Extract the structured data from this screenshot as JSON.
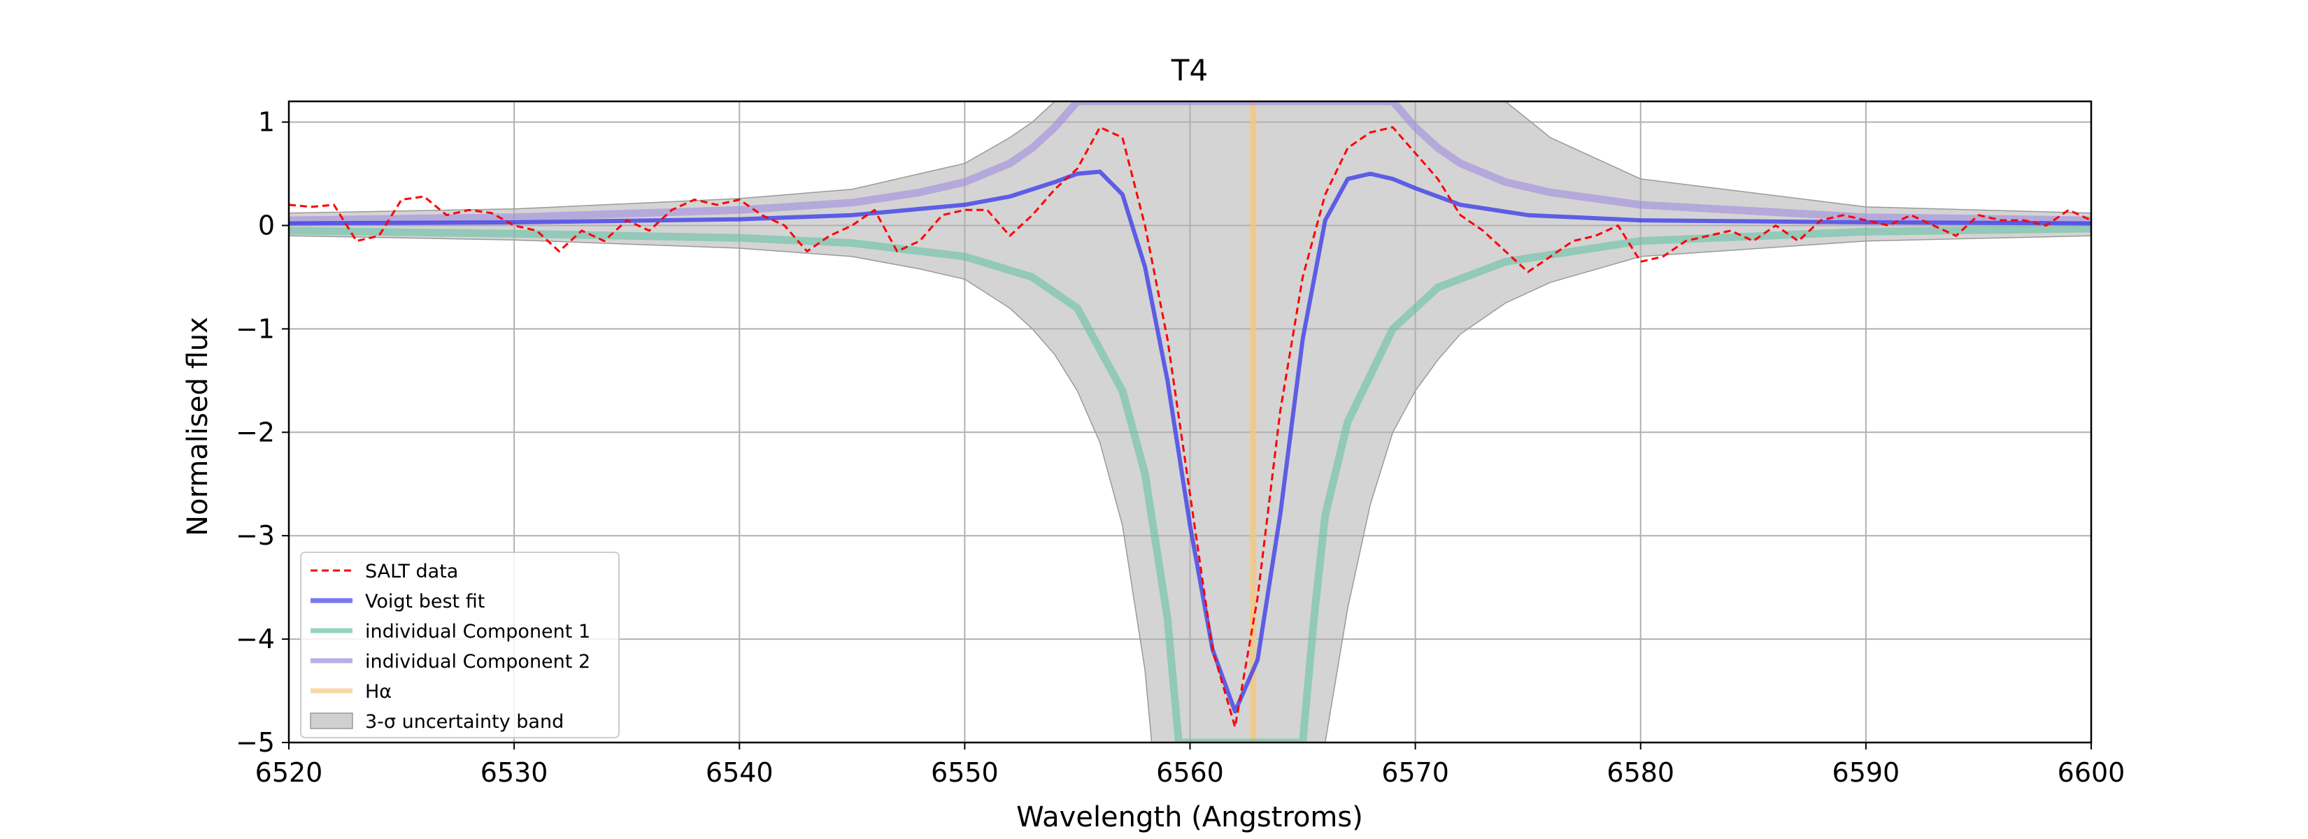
{
  "chart_data": {
    "type": "line",
    "title": "T4",
    "xlabel": "Wavelength (Angstroms)",
    "ylabel": "Normalised flux",
    "xlim": [
      6520,
      6600
    ],
    "ylim": [
      -5,
      1.2
    ],
    "xticks": [
      "6520",
      "6530",
      "6540",
      "6550",
      "6560",
      "6570",
      "6580",
      "6590",
      "6600"
    ],
    "yticks": [
      "1",
      "0",
      "−1",
      "−2",
      "−3",
      "−4",
      "−5"
    ],
    "grid": true,
    "legend_position": "lower-left",
    "halpha_wavelength": 6562.8,
    "series": [
      {
        "name": "SALT data",
        "style": "dashed",
        "color": "#ff0000",
        "x": [
          6520,
          6521,
          6522,
          6523,
          6524,
          6525,
          6526,
          6527,
          6528,
          6529,
          6530,
          6531,
          6532,
          6533,
          6534,
          6535,
          6536,
          6537,
          6538,
          6539,
          6540,
          6541,
          6542,
          6543,
          6544,
          6545,
          6546,
          6547,
          6548,
          6549,
          6550,
          6551,
          6552,
          6553,
          6554,
          6555,
          6556,
          6557,
          6558,
          6559,
          6560,
          6561,
          6562,
          6563,
          6564,
          6565,
          6566,
          6567,
          6568,
          6569,
          6570,
          6571,
          6572,
          6573,
          6574,
          6575,
          6576,
          6577,
          6578,
          6579,
          6580,
          6581,
          6582,
          6583,
          6584,
          6585,
          6586,
          6587,
          6588,
          6589,
          6590,
          6591,
          6592,
          6593,
          6594,
          6595,
          6596,
          6597,
          6598,
          6599,
          6600
        ],
        "y": [
          0.2,
          0.18,
          0.2,
          -0.15,
          -0.1,
          0.25,
          0.28,
          0.1,
          0.15,
          0.12,
          0.0,
          -0.05,
          -0.25,
          -0.05,
          -0.15,
          0.05,
          -0.05,
          0.15,
          0.25,
          0.2,
          0.25,
          0.1,
          0.0,
          -0.25,
          -0.1,
          0.0,
          0.15,
          -0.25,
          -0.15,
          0.1,
          0.15,
          0.15,
          -0.1,
          0.1,
          0.35,
          0.55,
          0.95,
          0.85,
          0.0,
          -1.1,
          -2.6,
          -4.1,
          -4.85,
          -3.6,
          -1.8,
          -0.5,
          0.3,
          0.75,
          0.9,
          0.95,
          0.7,
          0.45,
          0.1,
          -0.05,
          -0.25,
          -0.45,
          -0.3,
          -0.15,
          -0.1,
          0.0,
          -0.35,
          -0.3,
          -0.15,
          -0.1,
          -0.05,
          -0.15,
          0.0,
          -0.15,
          0.05,
          0.1,
          0.05,
          0.0,
          0.1,
          0.0,
          -0.1,
          0.1,
          0.05,
          0.05,
          0.0,
          0.15,
          0.05
        ]
      },
      {
        "name": "Voigt best fit",
        "style": "solid",
        "color": "#3f3fe8",
        "x": [
          6520,
          6530,
          6540,
          6545,
          6550,
          6552,
          6554,
          6555,
          6556,
          6557,
          6558,
          6559,
          6560,
          6561,
          6562,
          6563,
          6564,
          6565,
          6566,
          6567,
          6568,
          6569,
          6570,
          6572,
          6575,
          6580,
          6590,
          6600
        ],
        "y": [
          0.02,
          0.03,
          0.06,
          0.1,
          0.2,
          0.28,
          0.42,
          0.5,
          0.52,
          0.3,
          -0.4,
          -1.5,
          -2.9,
          -4.1,
          -4.7,
          -4.2,
          -2.8,
          -1.1,
          0.05,
          0.45,
          0.5,
          0.45,
          0.36,
          0.2,
          0.1,
          0.05,
          0.03,
          0.02
        ]
      },
      {
        "name": "individual Component 1",
        "style": "solid",
        "color": "#66c2a5",
        "x": [
          6520,
          6530,
          6540,
          6545,
          6550,
          6553,
          6555,
          6557,
          6558,
          6559,
          6559.5,
          6565,
          6565.5,
          6566,
          6567,
          6569,
          6571,
          6574,
          6580,
          6590,
          6600
        ],
        "y": [
          -0.05,
          -0.08,
          -0.12,
          -0.17,
          -0.3,
          -0.5,
          -0.8,
          -1.6,
          -2.4,
          -3.8,
          -5.0,
          -5.0,
          -3.8,
          -2.8,
          -1.9,
          -1.0,
          -0.6,
          -0.35,
          -0.15,
          -0.06,
          -0.03
        ]
      },
      {
        "name": "individual Component 2",
        "style": "solid",
        "color": "#9e8cde",
        "x": [
          6520,
          6530,
          6540,
          6545,
          6548,
          6550,
          6552,
          6553,
          6554,
          6555,
          6569,
          6570,
          6571,
          6572,
          6574,
          6576,
          6580,
          6590,
          6600
        ],
        "y": [
          0.05,
          0.08,
          0.15,
          0.22,
          0.32,
          0.42,
          0.6,
          0.75,
          0.95,
          1.2,
          1.2,
          0.95,
          0.75,
          0.6,
          0.42,
          0.32,
          0.2,
          0.08,
          0.05
        ]
      }
    ],
    "vertical_lines": [
      {
        "name": "Hα",
        "x": 6562.8,
        "color": "#f5c77e"
      }
    ],
    "bands": [
      {
        "name": "3-σ uncertainty band",
        "color": "#b0b0b0",
        "x": [
          6520,
          6530,
          6540,
          6545,
          6548,
          6550,
          6552,
          6553,
          6554,
          6555,
          6556,
          6557,
          6558,
          6558.3,
          6566,
          6567,
          6568,
          6569,
          6570,
          6571,
          6572,
          6573,
          6574,
          6576,
          6580,
          6590,
          6600
        ],
        "upper": [
          0.12,
          0.16,
          0.26,
          0.35,
          0.5,
          0.6,
          0.85,
          1.0,
          1.2,
          1.2,
          1.2,
          1.2,
          1.2,
          1.2,
          1.2,
          1.2,
          1.2,
          1.2,
          1.2,
          1.2,
          1.2,
          1.2,
          1.2,
          0.85,
          0.45,
          0.18,
          0.12
        ],
        "lower": [
          -0.1,
          -0.14,
          -0.22,
          -0.3,
          -0.42,
          -0.52,
          -0.8,
          -1.0,
          -1.25,
          -1.6,
          -2.1,
          -2.9,
          -4.3,
          -5.0,
          -5.0,
          -3.7,
          -2.7,
          -2.0,
          -1.6,
          -1.3,
          -1.05,
          -0.9,
          -0.75,
          -0.55,
          -0.3,
          -0.15,
          -0.1
        ]
      }
    ],
    "legend": [
      {
        "label": "SALT data",
        "kind": "dashed",
        "color": "#ff0000"
      },
      {
        "label": "Voigt best fit",
        "kind": "solid",
        "color": "#3f3fe8"
      },
      {
        "label": "individual Component 1",
        "kind": "solid",
        "color": "#66c2a5"
      },
      {
        "label": "individual Component 2",
        "kind": "solid",
        "color": "#9e8cde"
      },
      {
        "label": "Hα",
        "kind": "solid",
        "color": "#f5c77e"
      },
      {
        "label": "3-σ uncertainty band",
        "kind": "patch",
        "color": "#b0b0b0"
      }
    ]
  }
}
